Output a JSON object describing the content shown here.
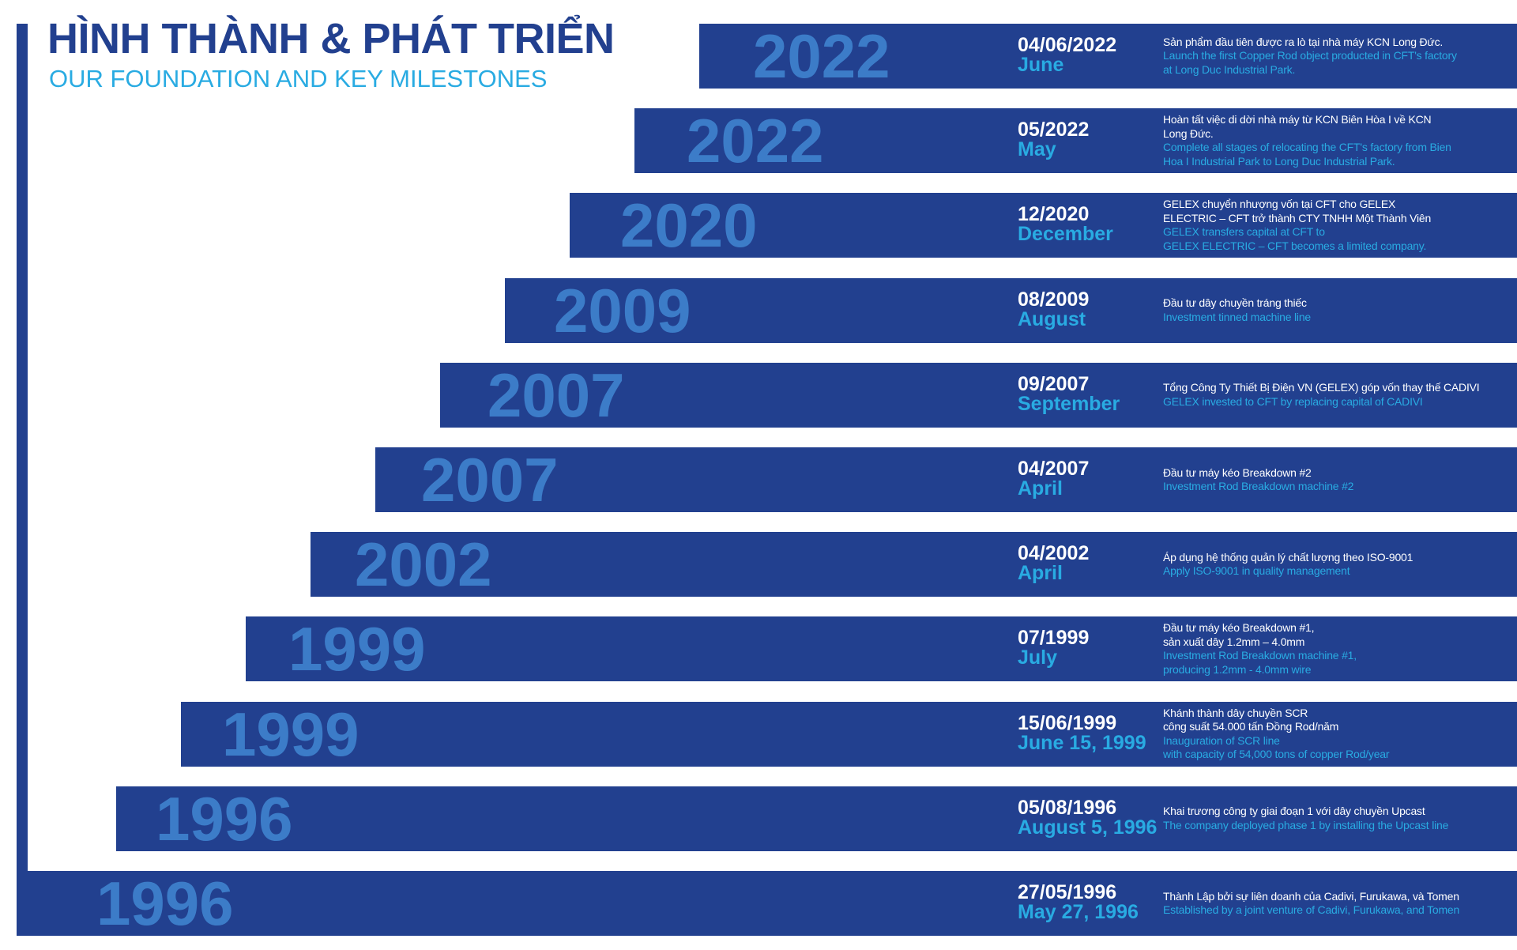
{
  "header": {
    "title": "HÌNH THÀNH & PHÁT TRIỂN",
    "subtitle": "OUR FOUNDATION AND KEY MILESTONES"
  },
  "milestones": [
    {
      "year": "2022",
      "date": "04/06/2022",
      "period": "June",
      "vn": [
        "Sản phẩm đầu tiên được ra lò tại nhà máy KCN Long Đức."
      ],
      "en": [
        "Launch the first Copper Rod object producted in CFT's factory",
        "at Long Duc Industrial Park."
      ]
    },
    {
      "year": "2022",
      "date": "05/2022",
      "period": "May",
      "vn": [
        "Hoàn tất việc di dời nhà máy từ KCN Biên Hòa I về KCN",
        "Long Đức."
      ],
      "en": [
        "Complete all stages of relocating the CFT's factory from Bien",
        "Hoa I Industrial Park to Long Duc Industrial Park."
      ]
    },
    {
      "year": "2020",
      "date": "12/2020",
      "period": "December",
      "vn": [
        "GELEX chuyển nhượng vốn tại CFT cho GELEX",
        "ELECTRIC – CFT trở thành CTY TNHH Một Thành Viên"
      ],
      "en": [
        "GELEX transfers capital at CFT to",
        "GELEX ELECTRIC – CFT becomes a limited company."
      ]
    },
    {
      "year": "2009",
      "date": "08/2009",
      "period": "August",
      "vn": [
        "Đầu tư dây chuyền tráng thiếc"
      ],
      "en": [
        "Investment tinned machine line"
      ]
    },
    {
      "year": "2007",
      "date": "09/2007",
      "period": "September",
      "vn": [
        "Tổng Công Ty Thiết Bị Điện VN (GELEX) góp vốn thay thế CADIVI"
      ],
      "en": [
        "GELEX invested to CFT by replacing capital of CADIVI"
      ]
    },
    {
      "year": "2007",
      "date": "04/2007",
      "period": "April",
      "vn": [
        "Đầu tư máy kéo Breakdown #2"
      ],
      "en": [
        "Investment Rod Breakdown machine #2"
      ]
    },
    {
      "year": "2002",
      "date": "04/2002",
      "period": "April",
      "vn": [
        "Áp dụng hệ thống quản lý chất lượng theo ISO-9001"
      ],
      "en": [
        "Apply ISO-9001 in quality management"
      ]
    },
    {
      "year": "1999",
      "date": "07/1999",
      "period": "July",
      "vn": [
        "Đầu tư máy kéo Breakdown #1,",
        "sản xuất dây 1.2mm – 4.0mm"
      ],
      "en": [
        "Investment Rod Breakdown machine #1,",
        "producing 1.2mm - 4.0mm wire"
      ]
    },
    {
      "year": "1999",
      "date": "15/06/1999",
      "period": "June 15, 1999",
      "vn": [
        "Khánh thành dây chuyền SCR",
        "công suất 54.000 tấn Đồng Rod/năm"
      ],
      "en": [
        "Inauguration of SCR line",
        "with capacity of 54,000 tons of copper Rod/year"
      ]
    },
    {
      "year": "1996",
      "date": "05/08/1996",
      "period": "August 5, 1996",
      "vn": [
        "Khai trương công ty giai đoạn 1 với dây chuyền Upcast"
      ],
      "en": [
        "The company deployed phase 1 by installing the Upcast line"
      ]
    },
    {
      "year": "1996",
      "date": "27/05/1996",
      "period": "May 27, 1996",
      "vn": [
        "Thành Lập bởi sự liên doanh của Cadivi, Furukawa, và Tomen"
      ],
      "en": [
        "Established by a joint venture of Cadivi, Furukawa, and Tomen"
      ]
    }
  ]
}
